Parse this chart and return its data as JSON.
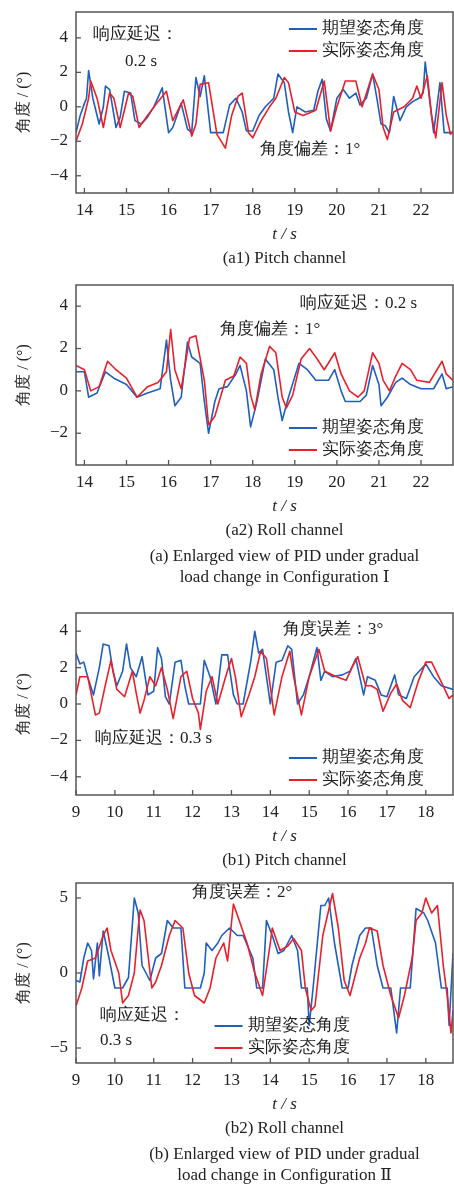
{
  "chart_data": [
    {
      "type": "line",
      "title": "(a1) Pitch channel",
      "xlabel": "t / s",
      "ylabel": "角度 / (°)",
      "xlim": [
        13.8,
        22.76
      ],
      "xticks": [
        14,
        15,
        16,
        17,
        18,
        19,
        20,
        21,
        22
      ],
      "ylim": [
        -5,
        5.5
      ],
      "yticks": [
        -4,
        -2,
        0,
        2,
        4
      ],
      "legend": "top right",
      "grid": false,
      "annotations": [
        "响应延迟：",
        "0.2 s",
        "角度偏差：1°"
      ],
      "series": [
        {
          "name": "期望姿态角度",
          "color": "#1f5fbf",
          "x": [
            13.8,
            13.9,
            14.0,
            14.05,
            14.1,
            14.2,
            14.35,
            14.45,
            14.5,
            14.6,
            14.75,
            14.85,
            14.95,
            15.1,
            15.2,
            15.35,
            15.5,
            15.65,
            15.85,
            16.0,
            16.1,
            16.3,
            16.45,
            16.55,
            16.65,
            16.75,
            16.85,
            17.0,
            17.3,
            17.45,
            17.6,
            17.75,
            17.85,
            18.0,
            18.15,
            18.3,
            18.5,
            18.6,
            18.75,
            18.85,
            18.95,
            19.05,
            19.25,
            19.45,
            19.55,
            19.65,
            19.75,
            19.85,
            20.0,
            20.15,
            20.3,
            20.45,
            20.55,
            20.7,
            20.85,
            20.95,
            21.05,
            21.15,
            21.25,
            21.35,
            21.5,
            21.65,
            21.8,
            21.95,
            22.05,
            22.1,
            22.2,
            22.3,
            22.45,
            22.55,
            22.76
          ],
          "values": [
            -1.5,
            -0.5,
            0.2,
            0.5,
            2.1,
            0.5,
            -1.0,
            0.0,
            1.2,
            1.0,
            -1.2,
            -0.6,
            0.9,
            0.8,
            -0.8,
            -1.0,
            -0.6,
            0.0,
            1.1,
            -1.5,
            -1.2,
            0.2,
            -1.3,
            -1.5,
            1.7,
            0.6,
            1.8,
            -1.5,
            -1.5,
            0.1,
            0.5,
            -0.3,
            -1.4,
            -1.4,
            -0.5,
            0.0,
            0.5,
            1.9,
            1.4,
            -0.3,
            -1.5,
            0.0,
            -0.3,
            -0.2,
            0.9,
            1.6,
            -0.7,
            -1.4,
            0.5,
            1.0,
            0.5,
            0.8,
            0.1,
            0.5,
            1.9,
            0.5,
            -1.0,
            -1.1,
            -1.5,
            0.6,
            -0.8,
            0.0,
            0.3,
            0.5,
            0.8,
            2.6,
            0.5,
            -1.5,
            1.4,
            -1.5,
            -1.5
          ]
        },
        {
          "name": "实际姿态角度",
          "color": "#e8202a",
          "x": [
            13.8,
            13.95,
            14.1,
            14.15,
            14.3,
            14.45,
            14.6,
            14.7,
            14.85,
            15.05,
            15.15,
            15.3,
            15.5,
            15.75,
            15.95,
            16.1,
            16.35,
            16.55,
            16.65,
            16.75,
            16.95,
            17.15,
            17.35,
            17.5,
            17.65,
            17.75,
            17.9,
            18.0,
            18.2,
            18.4,
            18.55,
            18.75,
            18.85,
            19.0,
            19.2,
            19.5,
            19.7,
            19.85,
            20.0,
            20.2,
            20.45,
            20.6,
            20.85,
            21.0,
            21.1,
            21.2,
            21.35,
            21.6,
            21.8,
            21.9,
            22.0,
            22.15,
            22.25,
            22.35,
            22.5,
            22.6,
            22.7,
            22.76
          ],
          "values": [
            -2.0,
            -1.0,
            0.5,
            1.5,
            0.5,
            -1.2,
            0.8,
            0.5,
            -1.2,
            0.8,
            0.6,
            -1.2,
            -0.5,
            0.3,
            0.9,
            -0.8,
            0.4,
            -1.7,
            -1.0,
            1.3,
            1.4,
            -1.6,
            -2.4,
            -0.5,
            0.6,
            0.8,
            -1.5,
            -1.8,
            -0.8,
            0.0,
            0.5,
            1.7,
            1.4,
            -0.3,
            -0.5,
            -0.2,
            1.5,
            -1.4,
            0.0,
            1.5,
            1.5,
            0.0,
            1.9,
            1.0,
            -1.2,
            -1.9,
            -0.3,
            0.0,
            0.5,
            1.2,
            0.5,
            1.8,
            -0.5,
            -1.8,
            1.4,
            -0.5,
            -1.6,
            -1.4
          ]
        }
      ]
    },
    {
      "type": "line",
      "title": "(a2) Roll channel",
      "xlabel": "t / s",
      "ylabel": "角度 / (°)",
      "xlim": [
        13.8,
        22.76
      ],
      "xticks": [
        14,
        15,
        16,
        17,
        18,
        19,
        20,
        21,
        22
      ],
      "ylim": [
        -3.5,
        5
      ],
      "yticks": [
        -2,
        0,
        2,
        4
      ],
      "legend": "bottom right",
      "grid": false,
      "annotations": [
        "响应延迟：0.2 s",
        "角度偏差：1°",
        "(a) Enlarged view of PID under gradual load change in Configuration Ⅰ"
      ],
      "series": [
        {
          "name": "期望姿态角度",
          "color": "#1f5fbf",
          "x": [
            13.8,
            14.0,
            14.1,
            14.3,
            14.5,
            14.7,
            15.0,
            15.25,
            15.5,
            15.8,
            15.95,
            16.05,
            16.15,
            16.3,
            16.45,
            16.55,
            16.75,
            16.85,
            16.95,
            17.1,
            17.2,
            17.4,
            17.6,
            17.7,
            17.85,
            17.95,
            18.1,
            18.3,
            18.5,
            18.6,
            18.7,
            18.85,
            19.1,
            19.3,
            19.5,
            19.8,
            19.95,
            20.1,
            20.2,
            20.55,
            20.7,
            20.85,
            21.0,
            21.05,
            21.2,
            21.4,
            21.55,
            21.75,
            22.0,
            22.3,
            22.5,
            22.6,
            22.76
          ],
          "values": [
            0.9,
            0.9,
            -0.3,
            -0.1,
            0.9,
            0.6,
            0.3,
            -0.3,
            -0.1,
            0.1,
            2.4,
            0.5,
            -0.7,
            -0.3,
            2.3,
            1.6,
            1.3,
            -0.5,
            -2.0,
            -0.5,
            0.1,
            0.2,
            0.8,
            1.2,
            0.0,
            -1.7,
            -0.5,
            1.5,
            1.0,
            -0.3,
            -1.4,
            -0.3,
            1.3,
            1.0,
            0.5,
            0.5,
            1.0,
            0.0,
            -0.5,
            -0.5,
            -0.2,
            1.2,
            0.3,
            -0.7,
            -0.3,
            0.4,
            0.6,
            0.3,
            0.1,
            0.1,
            0.8,
            0.1,
            0.2
          ]
        },
        {
          "name": "实际姿态角度",
          "color": "#e8202a",
          "x": [
            13.8,
            14.0,
            14.15,
            14.35,
            14.55,
            14.75,
            15.0,
            15.25,
            15.5,
            15.75,
            15.95,
            16.05,
            16.15,
            16.3,
            16.5,
            16.65,
            16.85,
            16.95,
            17.1,
            17.35,
            17.55,
            17.7,
            17.85,
            17.95,
            18.05,
            18.2,
            18.4,
            18.55,
            18.7,
            18.8,
            18.95,
            19.15,
            19.35,
            19.5,
            19.7,
            19.95,
            20.1,
            20.3,
            20.5,
            20.65,
            20.85,
            21.0,
            21.1,
            21.25,
            21.4,
            21.55,
            21.75,
            21.9,
            22.2,
            22.5,
            22.6,
            22.76
          ],
          "values": [
            1.2,
            1.0,
            0.0,
            0.2,
            1.4,
            1.0,
            0.6,
            -0.3,
            0.2,
            0.4,
            0.9,
            2.9,
            1.0,
            0.1,
            2.5,
            2.6,
            0.5,
            -1.6,
            -1.2,
            0.5,
            0.7,
            1.6,
            1.3,
            -0.2,
            -0.9,
            0.8,
            2.1,
            1.8,
            -0.3,
            -0.8,
            -0.2,
            1.5,
            2.0,
            1.6,
            1.0,
            1.8,
            0.8,
            0.0,
            -0.3,
            0.0,
            1.8,
            1.3,
            0.5,
            0.0,
            0.7,
            1.3,
            1.0,
            0.5,
            0.4,
            1.4,
            0.8,
            0.5
          ]
        }
      ]
    },
    {
      "type": "line",
      "title": "(b1) Pitch channel",
      "xlabel": "t / s",
      "ylabel": "角度 / (°)",
      "xlim": [
        9,
        18.7
      ],
      "xticks": [
        9,
        10,
        11,
        12,
        13,
        14,
        15,
        16,
        17,
        18
      ],
      "ylim": [
        -5,
        5
      ],
      "yticks": [
        -4,
        -2,
        0,
        2,
        4
      ],
      "legend": "bottom right",
      "grid": false,
      "annotations": [
        "角度误差：3°",
        "响应延迟：0.3 s"
      ],
      "series": [
        {
          "name": "期望姿态角度",
          "color": "#1f5fbf",
          "x": [
            9.0,
            9.1,
            9.2,
            9.3,
            9.45,
            9.6,
            9.7,
            9.85,
            9.95,
            10.05,
            10.2,
            10.3,
            10.4,
            10.55,
            10.7,
            10.85,
            11.0,
            11.1,
            11.2,
            11.3,
            11.4,
            11.55,
            11.7,
            11.8,
            11.9,
            12.2,
            12.3,
            12.45,
            12.6,
            12.75,
            12.9,
            13.05,
            13.15,
            13.3,
            13.5,
            13.6,
            13.7,
            13.8,
            14.0,
            14.15,
            14.3,
            14.45,
            14.55,
            14.7,
            14.85,
            15.0,
            15.2,
            15.3,
            15.4,
            15.6,
            15.85,
            16.05,
            16.2,
            16.4,
            16.5,
            16.7,
            16.85,
            17.0,
            17.2,
            17.3,
            17.5,
            17.7,
            18.0,
            18.2,
            18.4,
            18.7
          ],
          "values": [
            2.8,
            2.2,
            2.3,
            1.5,
            0.5,
            2.0,
            3.3,
            3.2,
            1.8,
            1.0,
            1.8,
            3.3,
            2.0,
            1.5,
            2.6,
            0.5,
            0.7,
            3.1,
            2.5,
            0.4,
            0.0,
            2.3,
            2.4,
            1.0,
            0.0,
            0.0,
            2.4,
            1.5,
            0.0,
            2.7,
            2.7,
            0.5,
            0.0,
            0.0,
            2.4,
            4.0,
            2.8,
            3.0,
            0.0,
            2.3,
            2.4,
            3.2,
            3.0,
            0.0,
            0.5,
            1.5,
            3.1,
            1.3,
            1.8,
            1.5,
            1.6,
            1.8,
            2.5,
            0.5,
            1.5,
            1.3,
            0.5,
            0.4,
            1.6,
            0.5,
            0.3,
            1.5,
            2.2,
            1.5,
            1.0,
            0.8
          ]
        },
        {
          "name": "实际姿态角度",
          "color": "#e8202a",
          "x": [
            9.0,
            9.1,
            9.3,
            9.5,
            9.6,
            9.75,
            9.9,
            10.05,
            10.25,
            10.45,
            10.55,
            10.65,
            10.75,
            10.9,
            11.05,
            11.2,
            11.35,
            11.5,
            11.7,
            11.85,
            12.0,
            12.15,
            12.2,
            12.35,
            12.5,
            12.65,
            12.85,
            13.0,
            13.1,
            13.25,
            13.45,
            13.6,
            13.75,
            13.9,
            14.1,
            14.3,
            14.5,
            14.6,
            14.8,
            15.0,
            15.25,
            15.4,
            15.7,
            15.95,
            16.1,
            16.25,
            16.45,
            16.6,
            16.75,
            16.9,
            17.1,
            17.25,
            17.4,
            17.6,
            17.8,
            18.0,
            18.15,
            18.4,
            18.6,
            18.7
          ],
          "values": [
            0.5,
            1.5,
            1.5,
            -0.6,
            -0.5,
            1.0,
            2.4,
            0.8,
            0.4,
            1.8,
            0.6,
            -0.5,
            0.2,
            1.5,
            1.0,
            2.0,
            0.8,
            -0.8,
            1.5,
            1.8,
            0.3,
            -0.5,
            -1.4,
            0.7,
            1.5,
            0.0,
            1.5,
            2.5,
            1.5,
            -0.7,
            0.5,
            1.5,
            2.9,
            2.5,
            -0.6,
            1.5,
            2.9,
            1.5,
            -0.6,
            1.5,
            3.0,
            1.8,
            1.5,
            1.3,
            2.0,
            2.6,
            1.0,
            1.0,
            0.8,
            -0.4,
            0.6,
            1.1,
            0.2,
            -0.2,
            1.2,
            2.3,
            2.3,
            1.2,
            0.3,
            0.5
          ]
        }
      ]
    },
    {
      "type": "line",
      "title": "(b2) Roll channel",
      "xlabel": "t / s",
      "ylabel": "角度 / (°)",
      "xlim": [
        9,
        18.7
      ],
      "xticks": [
        9,
        10,
        11,
        12,
        13,
        14,
        15,
        16,
        17,
        18
      ],
      "ylim": [
        -6,
        6
      ],
      "yticks": [
        -5,
        0,
        5
      ],
      "legend": "bottom",
      "grid": false,
      "annotations": [
        "角度误差：2°",
        "响应延迟：",
        "0.3 s",
        "(b) Enlarged view of PID under gradual load change in Configuration Ⅱ"
      ],
      "series": [
        {
          "name": "期望姿态角度",
          "color": "#1f5fbf",
          "x": [
            9.0,
            9.1,
            9.2,
            9.3,
            9.4,
            9.45,
            9.55,
            9.6,
            9.7,
            9.85,
            10.0,
            10.2,
            10.35,
            10.5,
            10.6,
            10.7,
            10.9,
            11.05,
            11.2,
            11.35,
            11.5,
            11.7,
            11.8,
            12.2,
            12.3,
            12.35,
            12.5,
            12.65,
            12.75,
            12.95,
            13.15,
            13.3,
            13.55,
            13.65,
            13.8,
            13.9,
            14.05,
            14.2,
            14.35,
            14.55,
            14.7,
            14.8,
            14.95,
            15.0,
            15.1,
            15.3,
            15.4,
            15.5,
            15.65,
            15.85,
            16.0,
            16.1,
            16.3,
            16.45,
            16.6,
            16.75,
            16.9,
            17.1,
            17.25,
            17.35,
            17.6,
            17.75,
            17.95,
            18.05,
            18.25,
            18.4,
            18.55,
            18.6,
            18.7
          ],
          "values": [
            -0.5,
            -0.6,
            1.0,
            2.0,
            1.5,
            -0.4,
            2.0,
            -0.2,
            2.8,
            1.0,
            -1.0,
            -1.0,
            -0.3,
            5.0,
            4.0,
            0.5,
            -0.5,
            1.0,
            1.3,
            3.5,
            3.0,
            3.0,
            -1.0,
            -1.0,
            0.0,
            2.0,
            1.5,
            2.0,
            2.5,
            3.0,
            2.5,
            2.5,
            1.0,
            -1.0,
            -1.0,
            3.5,
            2.5,
            1.3,
            1.5,
            2.5,
            1.5,
            -1.0,
            -1.0,
            -3.5,
            -1.0,
            4.5,
            4.5,
            5.0,
            2.0,
            -1.0,
            -1.0,
            0.5,
            2.5,
            3.0,
            3.0,
            0.5,
            -1.0,
            -1.0,
            -4.0,
            -1.0,
            -1.0,
            4.3,
            4.0,
            3.5,
            2.0,
            -1.0,
            -1.0,
            -3.5,
            1.3
          ]
        },
        {
          "name": "实际姿态角度",
          "color": "#e8202a",
          "x": [
            9.0,
            9.15,
            9.3,
            9.5,
            9.7,
            9.8,
            9.9,
            10.1,
            10.2,
            10.35,
            10.5,
            10.6,
            10.65,
            10.75,
            10.95,
            11.05,
            11.2,
            11.4,
            11.55,
            11.75,
            11.9,
            12.05,
            12.2,
            12.3,
            12.45,
            12.6,
            12.8,
            12.9,
            13.05,
            13.2,
            13.4,
            13.6,
            13.8,
            14.0,
            14.05,
            14.25,
            14.45,
            14.6,
            14.8,
            14.9,
            15.05,
            15.15,
            15.35,
            15.6,
            15.75,
            15.9,
            16.05,
            16.3,
            16.45,
            16.55,
            16.75,
            16.9,
            17.1,
            17.3,
            17.45,
            17.65,
            17.75,
            17.9,
            18.0,
            18.15,
            18.3,
            18.45,
            18.55,
            18.65,
            18.7
          ],
          "values": [
            -2.2,
            -1.0,
            0.8,
            1.0,
            2.5,
            3.0,
            1.5,
            0.0,
            -2.0,
            -1.5,
            0.0,
            3.0,
            4.2,
            3.5,
            -1.0,
            -0.6,
            0.5,
            2.5,
            3.5,
            3.0,
            0.0,
            -1.5,
            -1.8,
            -2.0,
            -1.0,
            1.0,
            2.0,
            0.8,
            4.6,
            3.5,
            2.0,
            0.0,
            -1.5,
            2.0,
            3.0,
            1.5,
            1.8,
            2.3,
            1.5,
            -1.0,
            -2.5,
            -2.2,
            2.5,
            5.3,
            3.0,
            -0.5,
            -1.5,
            1.0,
            2.0,
            3.0,
            2.8,
            0.5,
            -1.5,
            -3.0,
            -1.5,
            1.0,
            3.5,
            4.0,
            5.0,
            4.0,
            4.5,
            0.5,
            -1.5,
            -4.0,
            -2.5
          ]
        }
      ]
    }
  ]
}
